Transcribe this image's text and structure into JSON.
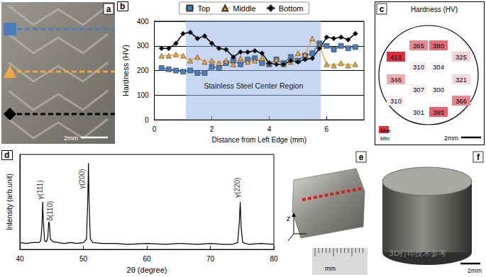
{
  "chart_data": [
    {
      "title": "b",
      "type": "line",
      "xlabel": "Distance from Left Edge (mm)",
      "ylabel": "Hardness (HV)",
      "x": [
        0.25,
        0.5,
        0.75,
        1.0,
        1.25,
        1.5,
        1.75,
        2.0,
        2.25,
        2.5,
        2.75,
        3.0,
        3.25,
        3.5,
        3.75,
        4.0,
        4.25,
        4.5,
        4.75,
        5.0,
        5.25,
        5.5,
        5.75,
        6.0,
        6.25,
        6.5,
        6.75,
        7.0
      ],
      "xlim": [
        0,
        7.3
      ],
      "xticks": [
        0,
        2,
        4,
        6
      ],
      "ylim": [
        0,
        400
      ],
      "yticks": [
        0,
        100,
        200,
        300,
        400
      ],
      "grid": true,
      "legend": "top",
      "series": [
        {
          "name": "Top",
          "color": "#4a7ebb",
          "marker": "square",
          "values": [
            210,
            205,
            200,
            195,
            200,
            190,
            190,
            215,
            210,
            230,
            240,
            225,
            245,
            250,
            230,
            225,
            245,
            230,
            255,
            240,
            260,
            270,
            310,
            300,
            285,
            300,
            290,
            295
          ]
        },
        {
          "name": "Middle",
          "color": "#f2a641",
          "marker": "triangle",
          "values": [
            260,
            260,
            265,
            260,
            240,
            255,
            235,
            240,
            230,
            240,
            225,
            250,
            235,
            240,
            250,
            230,
            245,
            225,
            235,
            270,
            265,
            330,
            300,
            225,
            220,
            230,
            220,
            225
          ]
        },
        {
          "name": "Bottom",
          "color": "#000000",
          "marker": "diamond",
          "values": [
            290,
            290,
            310,
            350,
            355,
            330,
            340,
            310,
            290,
            285,
            255,
            275,
            275,
            280,
            270,
            230,
            225,
            225,
            240,
            235,
            245,
            250,
            290,
            335,
            330,
            335,
            325,
            350
          ]
        }
      ],
      "region": {
        "x": [
          1.1,
          5.8
        ],
        "label": "Stainless Steel Center Region"
      }
    },
    {
      "title": "d",
      "type": "line",
      "xlabel": "2θ (degree)",
      "ylabel": "Intensity (arb.unit)",
      "x": [
        40,
        41,
        42,
        43,
        43.3,
        43.5,
        43.6,
        43.7,
        43.9,
        44.2,
        44.4,
        44.55,
        44.65,
        44.8,
        45.2,
        46,
        47,
        48,
        49,
        50,
        50.5,
        50.7,
        50.8,
        50.9,
        51.1,
        51.5,
        53,
        55,
        57,
        60,
        63,
        65,
        68,
        70,
        72,
        73.5,
        74.3,
        74.55,
        74.7,
        74.85,
        75.1,
        76,
        78,
        80
      ],
      "values": [
        8,
        7,
        8,
        8,
        10,
        30,
        55,
        32,
        10,
        9,
        14,
        32,
        30,
        12,
        9,
        8,
        7,
        8,
        7,
        8,
        12,
        60,
        100,
        55,
        12,
        8,
        7,
        7,
        6,
        7,
        6,
        7,
        6,
        7,
        6,
        6,
        8,
        30,
        55,
        25,
        8,
        6,
        7,
        6
      ],
      "color": "#000000",
      "xlim": [
        40,
        80
      ],
      "xticks": [
        40,
        50,
        60,
        70,
        80
      ],
      "ylim": [
        0,
        110
      ],
      "tick_labels": "x",
      "annotations": [
        {
          "text": "γ(111)",
          "x": 43.2,
          "y": 58
        },
        {
          "text": "δ(110)",
          "x": 44.8,
          "y": 33
        },
        {
          "text": "γ(200)",
          "x": 49.8,
          "y": 70
        },
        {
          "text": "γ(220)",
          "x": 74.2,
          "y": 60
        }
      ]
    }
  ],
  "panels": {
    "a": {
      "label": "a",
      "scale_bar": "2mm"
    },
    "c": {
      "label": "c",
      "title": "Hardness (HV)",
      "values": [
        365,
        380,
        413,
        325,
        310,
        304,
        346,
        321,
        307,
        300,
        310,
        366,
        301,
        385
      ],
      "key_labels": [
        "Max",
        "Min"
      ],
      "scale_bar": "2mm"
    },
    "e": {
      "label": "e",
      "axis_label": "z",
      "ruler_unit": "mm"
    },
    "f": {
      "label": "f",
      "scale_bar": "2mm"
    }
  },
  "watermark": "3D打印技术参考"
}
